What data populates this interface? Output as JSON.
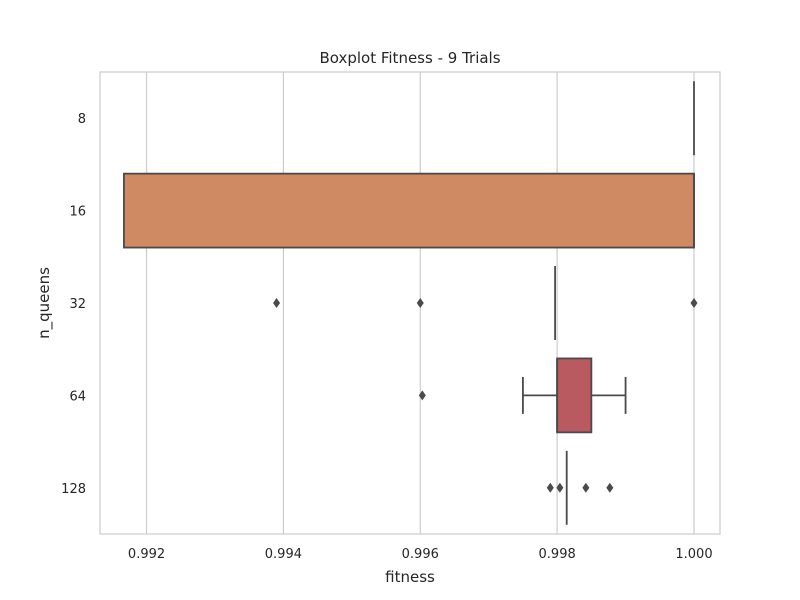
{
  "chart_data": {
    "type": "boxplot",
    "title": "Boxplot Fitness - 9 Trials",
    "xlabel": "fitness",
    "ylabel": "n_queens",
    "xlim": [
      0.99132,
      1.00038
    ],
    "xticks": [
      0.992,
      0.994,
      0.996,
      0.998,
      1.0
    ],
    "xtick_labels": [
      "0.992",
      "0.994",
      "0.996",
      "0.998",
      "1.000"
    ],
    "grid": true,
    "categories": [
      "8",
      "16",
      "32",
      "64",
      "128"
    ],
    "boxes": [
      {
        "category": "8",
        "whisker_low": 1.0,
        "q1": 1.0,
        "median": 1.0,
        "q3": 1.0,
        "whisker_high": 1.0,
        "outliers": [],
        "color": "#4c72b0"
      },
      {
        "category": "16",
        "whisker_low": 0.99167,
        "q1": 0.99167,
        "median": 1.0,
        "q3": 1.0,
        "whisker_high": 1.0,
        "outliers": [],
        "color": "#cf8963"
      },
      {
        "category": "32",
        "whisker_low": 0.99797,
        "q1": 0.99797,
        "median": 0.99797,
        "q3": 0.99797,
        "whisker_high": 0.99797,
        "outliers": [
          0.9939,
          0.996,
          1.0
        ],
        "color": "#55a868"
      },
      {
        "category": "64",
        "whisker_low": 0.9975,
        "q1": 0.998,
        "median": 0.998,
        "q3": 0.9985,
        "whisker_high": 0.999,
        "outliers": [
          0.99603
        ],
        "color": "#b85a5f"
      },
      {
        "category": "128",
        "whisker_low": 0.99814,
        "q1": 0.99814,
        "median": 0.99814,
        "q3": 0.99814,
        "whisker_high": 0.99814,
        "outliers": [
          0.9979,
          0.99804,
          0.99842,
          0.99877
        ],
        "color": "#8172b3"
      }
    ]
  }
}
